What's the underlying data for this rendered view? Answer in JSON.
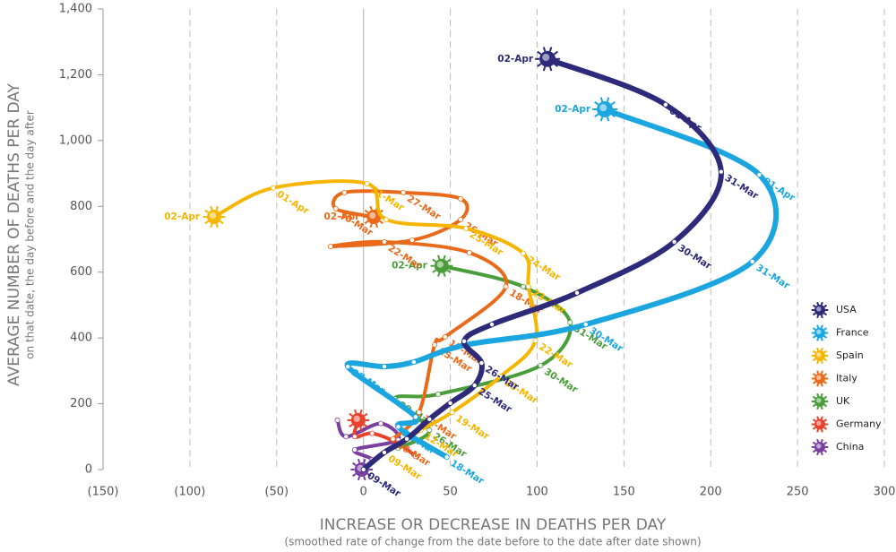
{
  "chart_data": {
    "type": "line",
    "y_title": "AVERAGE NUMBER OF DEATHS PER DAY",
    "y_subtitle": "on that date, the day before and the day after",
    "x_title": "INCREASE OR DECREASE IN DEATHS PER DAY",
    "x_subtitle": "(smoothed rate of change from the date before to the date after date shown)",
    "xlim": [
      -150,
      300
    ],
    "xticks": [
      {
        "value": -150,
        "label": "(150)"
      },
      {
        "value": -100,
        "label": "(100)"
      },
      {
        "value": -50,
        "label": "(50)"
      },
      0,
      50,
      100,
      150,
      200,
      250,
      300
    ],
    "ylim": [
      0,
      1400
    ],
    "yticks": [
      0,
      200,
      400,
      600,
      800,
      {
        "value": 1000,
        "label": "1,000"
      },
      {
        "value": 1200,
        "label": "1,200"
      },
      {
        "value": 1400,
        "label": "1,400"
      }
    ],
    "grid": true,
    "legend": "right",
    "series": [
      {
        "name": "China",
        "color": "#7b3fa0",
        "x": [
          -15,
          -10,
          10,
          20,
          -5,
          5,
          -1
        ],
        "y": [
          150,
          100,
          140,
          90,
          60,
          30,
          0
        ],
        "labels": [
          null,
          null,
          null,
          null,
          null,
          null,
          null
        ]
      },
      {
        "name": "Germany",
        "color": "#e8412c",
        "x": [
          30,
          20,
          5,
          -5,
          -3
        ],
        "y": [
          40,
          80,
          110,
          100,
          150
        ],
        "labels": [
          null,
          null,
          null,
          null,
          null
        ]
      },
      {
        "name": "UK",
        "color": "#4a9e3a",
        "x": [
          20,
          38,
          18,
          43,
          102,
          119,
          92,
          45
        ],
        "y": [
          65,
          120,
          215,
          229,
          316,
          447,
          556,
          619
        ],
        "labels": [
          null,
          "26-Mar",
          "28-Mar",
          null,
          "30-Mar",
          "31-Mar",
          null,
          "02-Apr"
        ]
      },
      {
        "name": "Italy",
        "color": "#ea6a1b",
        "x": [
          17,
          32,
          41,
          47,
          82,
          61,
          12,
          -19,
          28,
          56,
          56,
          23,
          -11,
          -16,
          6
        ],
        "y": [
          93,
          174,
          379,
          403,
          556,
          659,
          692,
          678,
          697,
          760,
          823,
          842,
          842,
          793,
          768
        ],
        "labels": [
          "06-Mar",
          "12-Mar",
          "15-Mar",
          "17-Mar",
          "18-Mar",
          null,
          "22-Mar",
          null,
          null,
          "26-Mar",
          null,
          "27-Mar",
          null,
          "30-Mar",
          "02-Apr"
        ]
      },
      {
        "name": "Spain",
        "color": "#f6b600",
        "x": [
          12,
          33,
          51,
          79,
          99,
          95,
          92,
          59,
          13,
          2,
          -52,
          -86
        ],
        "y": [
          52,
          120,
          174,
          283,
          392,
          556,
          657,
          733,
          760,
          869,
          856,
          768
        ],
        "labels": [
          "09-Mar",
          "12-Mar",
          "19-Mar",
          "20-Mar",
          "22-Mar",
          "23-Mar",
          "24-Mar",
          "25-Mar",
          null,
          "31-Mar",
          "01-Apr",
          "02-Apr"
        ]
      },
      {
        "name": "France",
        "color": "#1ba6e0",
        "x": [
          48,
          20,
          30,
          -9,
          12,
          29,
          59,
          128,
          224,
          228,
          139
        ],
        "y": [
          38,
          130,
          160,
          313,
          313,
          327,
          379,
          441,
          632,
          896,
          1095
        ],
        "labels": [
          "18-Mar",
          "21-Mar",
          null,
          "27-Mar",
          null,
          null,
          null,
          "30-Mar",
          "31-Mar",
          "01-Apr",
          "02-Apr"
        ]
      },
      {
        "name": "USA",
        "color": "#2e2a7a",
        "x": [
          0,
          12,
          25,
          38,
          50,
          64,
          68,
          58,
          74,
          123,
          179,
          206,
          174,
          106
        ],
        "y": [
          0,
          52,
          93,
          153,
          202,
          256,
          324,
          390,
          441,
          537,
          692,
          905,
          1109,
          1248
        ],
        "labels": [
          "09-Mar",
          null,
          null,
          null,
          null,
          "25-Mar",
          "26-Mar",
          null,
          null,
          null,
          "30-Mar",
          "31-Mar",
          "01-Apr",
          "02-Apr"
        ]
      }
    ]
  }
}
